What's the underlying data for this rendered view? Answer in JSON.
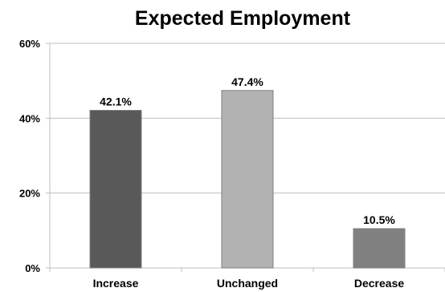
{
  "chart_data": {
    "type": "bar",
    "title": "Expected Employment",
    "categories": [
      "Increase",
      "Unchanged",
      "Decrease"
    ],
    "values": [
      42.1,
      47.4,
      10.5
    ],
    "data_labels": [
      "42.1%",
      "47.4%",
      "10.5%"
    ],
    "bar_colors": [
      "#595959",
      "#b2b2b2",
      "#808080"
    ],
    "xlabel": "",
    "ylabel": "",
    "ylim": [
      0,
      60
    ],
    "yticks": [
      0,
      20,
      40,
      60
    ],
    "ytick_labels": [
      "0%",
      "20%",
      "40%",
      "60%"
    ],
    "grid": true,
    "legend": "none"
  }
}
